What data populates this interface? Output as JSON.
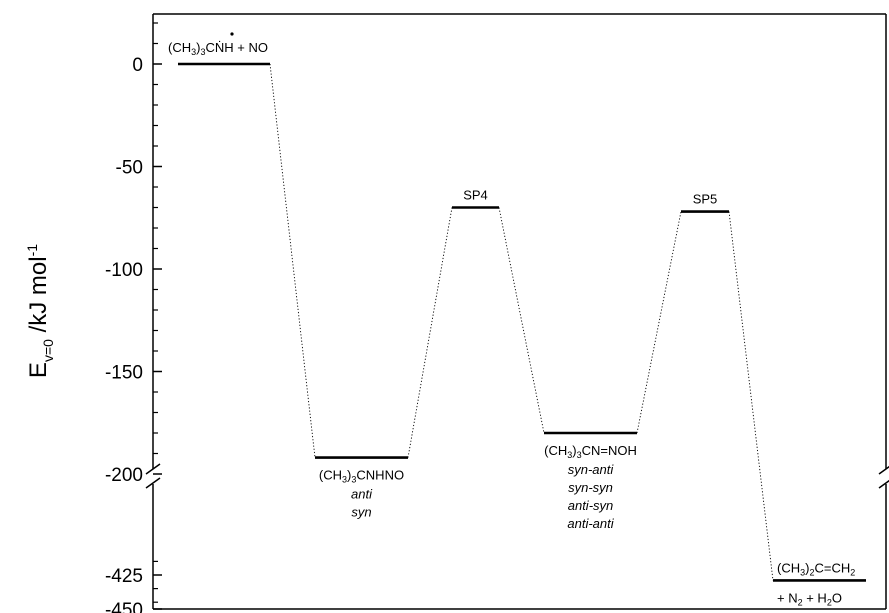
{
  "chart_data": {
    "type": "energy-level-diagram",
    "ylabel": {
      "main": "E",
      "subscript": "v=0",
      "unit": " /kJ mol",
      "superscript": "-1"
    },
    "y_axis": {
      "broken": true,
      "upper_segment": [
        -200,
        0
      ],
      "lower_segment": [
        -450,
        -425
      ],
      "top_limit": 25
    },
    "y_ticks": [
      0,
      -50,
      -100,
      -150,
      -200,
      -425,
      -450
    ],
    "y_tick_labels": [
      "0",
      "-50",
      "-100",
      "-150",
      "-200",
      "-425",
      "-450"
    ],
    "levels": [
      {
        "id": "reactants",
        "energy": 0,
        "label": "(CH3)3CṄH + NO",
        "label_parts": [
          [
            "(CH",
            "n"
          ],
          [
            "3",
            "sub"
          ],
          [
            ")",
            "n"
          ],
          [
            "3",
            "sub"
          ],
          [
            "CṄH + NO",
            "n"
          ]
        ],
        "label_pos": "above",
        "conformers": []
      },
      {
        "id": "int1",
        "energy": -192,
        "label": "(CH3)3CNHNO",
        "label_parts": [
          [
            "(CH",
            "n"
          ],
          [
            "3",
            "sub"
          ],
          [
            ")",
            "n"
          ],
          [
            "3",
            "sub"
          ],
          [
            "CNHNO",
            "n"
          ]
        ],
        "label_pos": "below",
        "conformers": [
          "anti",
          "syn"
        ]
      },
      {
        "id": "sp4",
        "energy": -70,
        "label": "SP4",
        "label_parts": [
          [
            "SP4",
            "n"
          ]
        ],
        "label_pos": "above",
        "conformers": []
      },
      {
        "id": "int2",
        "energy": -180,
        "label": "(CH3)3CN=NOH",
        "label_parts": [
          [
            "(CH",
            "n"
          ],
          [
            "3",
            "sub"
          ],
          [
            ")",
            "n"
          ],
          [
            "3",
            "sub"
          ],
          [
            "CN=NOH",
            "n"
          ]
        ],
        "label_pos": "below",
        "conformers": [
          "syn-anti",
          "syn-syn",
          "anti-syn",
          "anti-anti"
        ]
      },
      {
        "id": "sp5",
        "energy": -72,
        "label": "SP5",
        "label_parts": [
          [
            "SP5",
            "n"
          ]
        ],
        "label_pos": "above",
        "conformers": []
      },
      {
        "id": "products",
        "energy": -429,
        "label": "(CH3)2C=CH2 + N2 + H2O",
        "label_parts": [
          [
            "(CH",
            "n"
          ],
          [
            "3",
            "sub"
          ],
          [
            ")",
            "n"
          ],
          [
            "2",
            "sub"
          ],
          [
            "C=CH",
            "n"
          ],
          [
            "2",
            "sub"
          ]
        ],
        "label_parts_line2": [
          [
            "+ N",
            "n"
          ],
          [
            "2",
            "sub"
          ],
          [
            " + H",
            "n"
          ],
          [
            "2",
            "sub"
          ],
          [
            "O",
            "n"
          ]
        ],
        "label_pos": "above-below",
        "conformers": []
      }
    ],
    "connections": [
      [
        "reactants",
        "int1"
      ],
      [
        "int1",
        "sp4"
      ],
      [
        "sp4",
        "int2"
      ],
      [
        "int2",
        "sp5"
      ],
      [
        "sp5",
        "products"
      ]
    ],
    "grid": false
  }
}
